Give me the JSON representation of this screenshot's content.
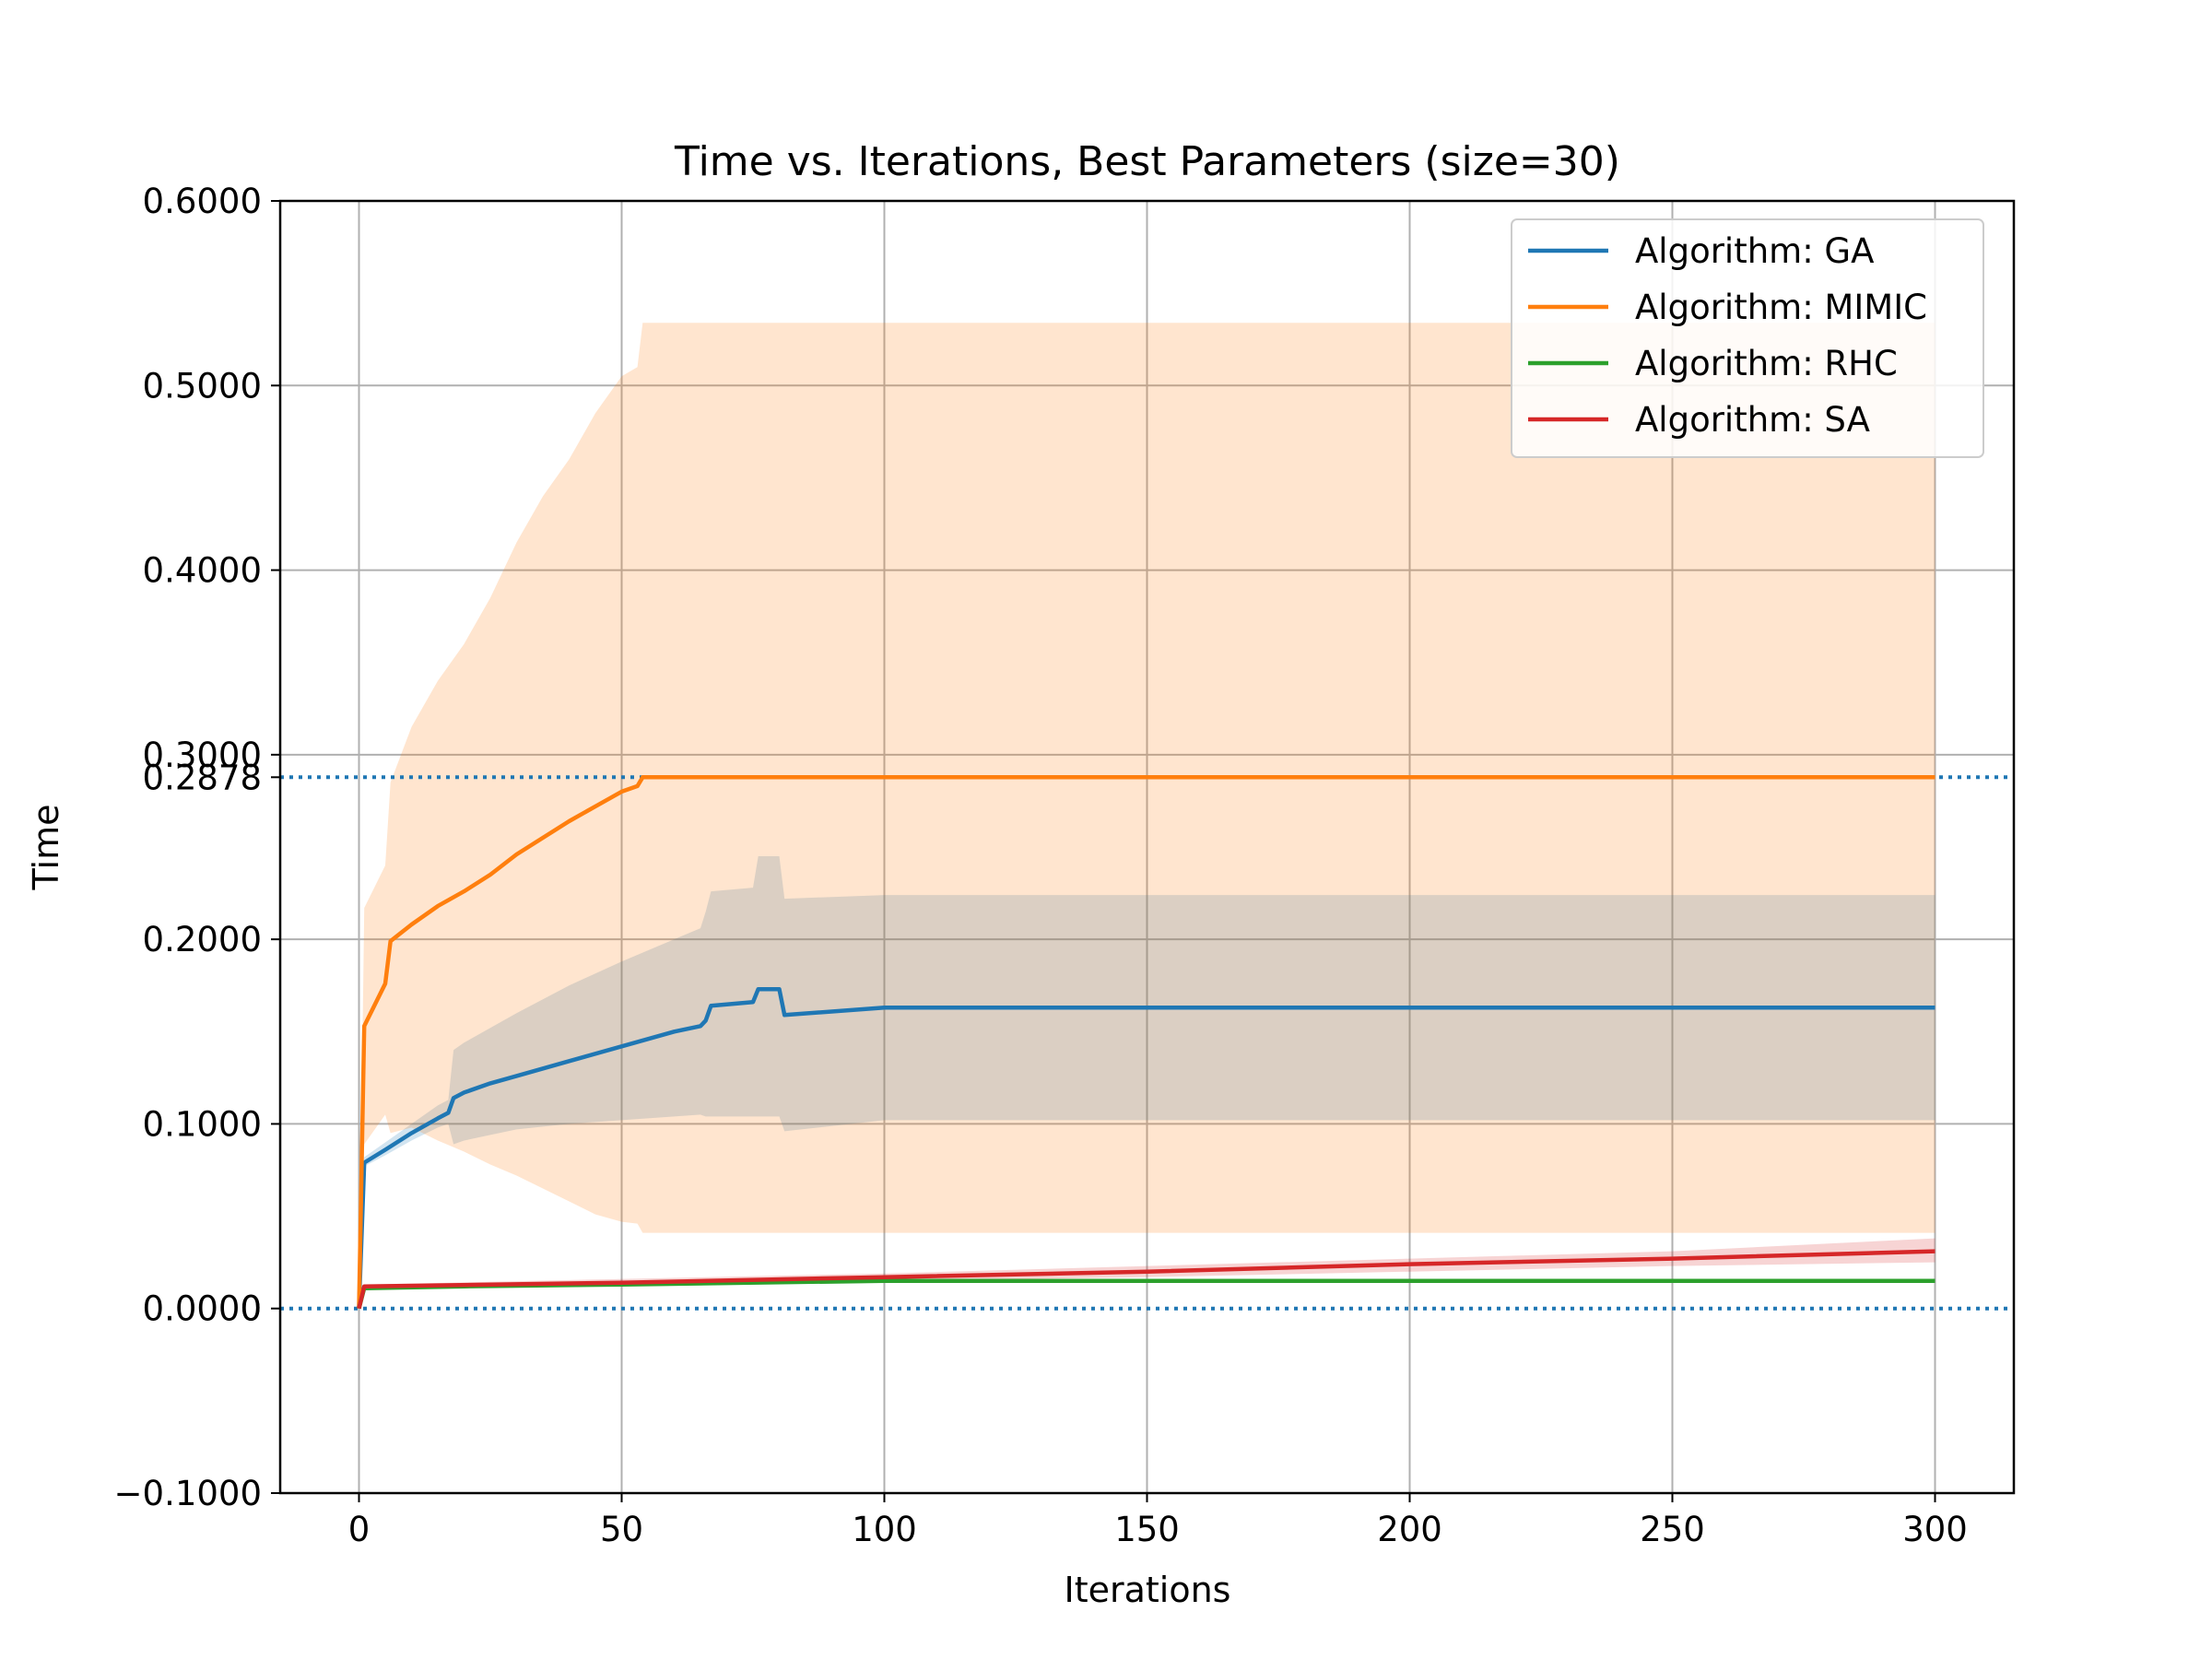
{
  "chart_data": {
    "type": "line",
    "title": "Time vs. Iterations, Best Parameters (size=30)",
    "xlabel": "Iterations",
    "ylabel": "Time",
    "xlim": [
      -15,
      315
    ],
    "ylim": [
      -0.1,
      0.6
    ],
    "x_ticks": [
      0,
      50,
      100,
      150,
      200,
      250,
      300
    ],
    "x_tick_labels": [
      "0",
      "50",
      "100",
      "150",
      "200",
      "250",
      "300"
    ],
    "y_ticks": [
      -0.1,
      0.0,
      0.1,
      0.2,
      0.2878,
      0.3,
      0.4,
      0.5,
      0.6
    ],
    "y_tick_labels": [
      "−0.1000",
      "0.0000",
      "0.1000",
      "0.2000",
      "0.2878",
      "0.3000",
      "0.4000",
      "0.5000",
      "0.6000"
    ],
    "extra_zero_tick_label": "0",
    "grid": true,
    "legend_position": "top-right",
    "reference_lines": [
      {
        "y": 0.2878,
        "style": "dotted",
        "color": "#1f77b4"
      },
      {
        "y": 0.0,
        "style": "dotted",
        "color": "#1f77b4"
      }
    ],
    "series": [
      {
        "name": "Algorithm: GA",
        "color": "#1f77b4",
        "x": [
          0,
          1,
          5,
          10,
          15,
          17,
          18,
          20,
          25,
          30,
          40,
          50,
          60,
          65,
          66,
          67,
          75,
          76,
          80,
          81,
          100,
          150,
          200,
          250,
          300
        ],
        "y": [
          0.0,
          0.079,
          0.086,
          0.095,
          0.103,
          0.106,
          0.114,
          0.117,
          0.122,
          0.126,
          0.134,
          0.142,
          0.15,
          0.153,
          0.156,
          0.164,
          0.166,
          0.173,
          0.173,
          0.159,
          0.163,
          0.163,
          0.163,
          0.163,
          0.163
        ],
        "band_upper": [
          0.0,
          0.082,
          0.09,
          0.1,
          0.11,
          0.113,
          0.14,
          0.144,
          0.152,
          0.16,
          0.175,
          0.188,
          0.2,
          0.206,
          0.215,
          0.226,
          0.228,
          0.245,
          0.245,
          0.222,
          0.224,
          0.224,
          0.224,
          0.224,
          0.224
        ],
        "band_lower": [
          0.0,
          0.077,
          0.083,
          0.091,
          0.098,
          0.1,
          0.089,
          0.091,
          0.094,
          0.097,
          0.1,
          0.102,
          0.104,
          0.105,
          0.104,
          0.104,
          0.104,
          0.104,
          0.104,
          0.096,
          0.102,
          0.102,
          0.102,
          0.102,
          0.102
        ]
      },
      {
        "name": "Algorithm: MIMIC",
        "color": "#ff7f0e",
        "x": [
          0,
          1,
          5,
          6,
          10,
          15,
          20,
          25,
          30,
          35,
          40,
          45,
          50,
          53,
          54,
          100,
          150,
          200,
          250,
          300
        ],
        "y": [
          0.0,
          0.153,
          0.176,
          0.199,
          0.208,
          0.218,
          0.226,
          0.235,
          0.246,
          0.255,
          0.264,
          0.272,
          0.28,
          0.283,
          0.2878,
          0.2878,
          0.2878,
          0.2878,
          0.2878,
          0.2878
        ],
        "band_upper": [
          0.0,
          0.217,
          0.24,
          0.285,
          0.315,
          0.34,
          0.36,
          0.385,
          0.415,
          0.44,
          0.46,
          0.485,
          0.505,
          0.51,
          0.534,
          0.534,
          0.534,
          0.534,
          0.534,
          0.534
        ],
        "band_lower": [
          0.0,
          0.089,
          0.105,
          0.095,
          0.098,
          0.091,
          0.085,
          0.078,
          0.072,
          0.065,
          0.058,
          0.051,
          0.047,
          0.046,
          0.041,
          0.041,
          0.041,
          0.041,
          0.041,
          0.041
        ]
      },
      {
        "name": "Algorithm: RHC",
        "color": "#2ca02c",
        "x": [
          0,
          1,
          20,
          50,
          100,
          150,
          200,
          250,
          300
        ],
        "y": [
          0.0,
          0.011,
          0.012,
          0.013,
          0.015,
          0.015,
          0.015,
          0.015,
          0.015
        ],
        "band_upper": [
          0.0,
          0.012,
          0.013,
          0.014,
          0.016,
          0.016,
          0.016,
          0.016,
          0.016
        ],
        "band_lower": [
          0.0,
          0.01,
          0.011,
          0.012,
          0.014,
          0.014,
          0.014,
          0.014,
          0.014
        ]
      },
      {
        "name": "Algorithm: SA",
        "color": "#d62728",
        "x": [
          0,
          1,
          50,
          100,
          150,
          200,
          250,
          300
        ],
        "y": [
          0.0,
          0.012,
          0.014,
          0.017,
          0.02,
          0.024,
          0.027,
          0.031
        ],
        "band_upper": [
          0.0,
          0.013,
          0.016,
          0.019,
          0.023,
          0.027,
          0.031,
          0.038
        ],
        "band_lower": [
          0.0,
          0.011,
          0.012,
          0.015,
          0.017,
          0.02,
          0.023,
          0.025
        ]
      }
    ]
  }
}
